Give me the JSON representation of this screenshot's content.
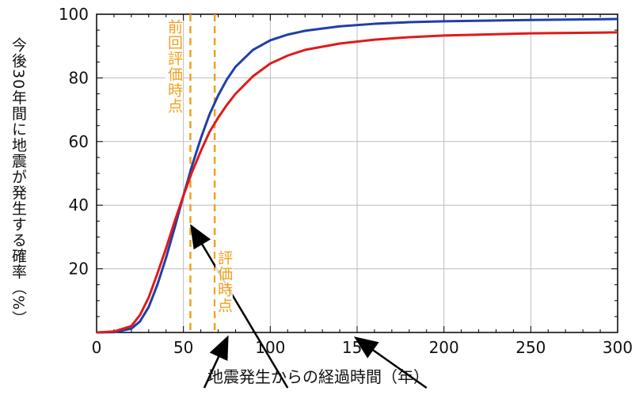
{
  "chart_data": {
    "type": "line",
    "xlabel": "地震発生からの経過時間（年）",
    "ylabel": "今後30年間に地震が発生する確率（%）",
    "xlim": [
      0,
      300
    ],
    "ylim": [
      0,
      100
    ],
    "xticks": [
      0,
      50,
      100,
      150,
      200,
      250,
      300
    ],
    "yticks": [
      20,
      40,
      60,
      80,
      100
    ],
    "grid": true,
    "series": [
      {
        "color": "#1f3fa8",
        "x": [
          0,
          10,
          20,
          25,
          30,
          35,
          40,
          45,
          50,
          55,
          60,
          65,
          70,
          75,
          80,
          90,
          100,
          110,
          120,
          140,
          160,
          180,
          200,
          250,
          300
        ],
        "y": [
          0,
          0.1,
          1.2,
          3.5,
          8,
          15,
          23.5,
          33,
          43,
          52.5,
          61,
          68.5,
          74.5,
          79.5,
          83.5,
          88.8,
          91.8,
          93.6,
          94.8,
          96.2,
          97,
          97.5,
          97.8,
          98.2,
          98.5
        ]
      },
      {
        "color": "#e01a1a",
        "x": [
          0,
          10,
          20,
          25,
          30,
          35,
          40,
          45,
          50,
          55,
          60,
          65,
          70,
          75,
          80,
          90,
          100,
          110,
          120,
          140,
          160,
          180,
          200,
          250,
          300
        ],
        "y": [
          0,
          0.3,
          2,
          5.5,
          11,
          18.5,
          26.5,
          35,
          43,
          50.5,
          57,
          63,
          67.5,
          71.5,
          75,
          80.5,
          84.5,
          87,
          88.8,
          90.8,
          92,
          92.8,
          93.3,
          94,
          94.3
        ]
      }
    ],
    "vlines": [
      {
        "x": 54,
        "color": "#f0a01e",
        "style": "dashed",
        "label": "前回評価時点"
      },
      {
        "x": 68,
        "color": "#f0a01e",
        "style": "dashed",
        "label": "評価時点"
      }
    ],
    "arrows": [
      {
        "from": [
          110,
          -18
        ],
        "to": [
          55,
          33
        ]
      },
      {
        "from": [
          62,
          -18
        ],
        "to": [
          75,
          -2
        ]
      },
      {
        "from": [
          190,
          -18
        ],
        "to": [
          150,
          -2
        ]
      }
    ]
  }
}
